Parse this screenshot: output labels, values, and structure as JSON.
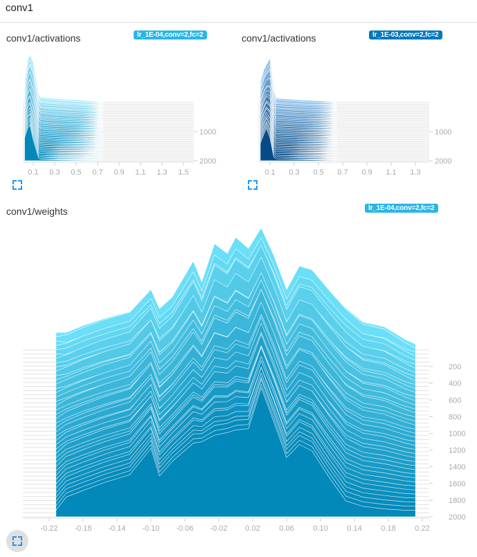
{
  "header": {
    "title": "conv1"
  },
  "charts": [
    {
      "title": "conv1/activations",
      "run_tag": "lr_1E-04,conv=2,fc=2",
      "tag_color": "#29b6e6",
      "color_back": "#b8f0ff",
      "color_front": "#0288b9",
      "chart_data": {
        "type": "area",
        "mode": "offset-histogram",
        "x_ticks": [
          "0.1",
          "0.3",
          "0.5",
          "0.7",
          "0.9",
          "1.1",
          "1.3",
          "1.5"
        ],
        "y_ticks": [
          "1000",
          "2000"
        ],
        "xlim": [
          0,
          1.6
        ],
        "ylim": [
          0,
          2000
        ],
        "density_x": [
          0.02,
          0.05,
          0.07,
          0.1,
          0.15,
          0.17,
          0.25,
          0.35,
          0.5,
          0.65,
          0.72,
          0.75
        ],
        "density_back": [
          0.55,
          0.9,
          1.0,
          0.85,
          0.2,
          0.12,
          0.1,
          0.08,
          0.06,
          0.03,
          0.01,
          0
        ],
        "density_front": [
          0.55,
          0.8,
          0.85,
          0.5,
          0.06,
          0.04,
          0.03,
          0.02,
          0.015,
          0.01,
          0.005,
          0
        ]
      }
    },
    {
      "title": "conv1/activations",
      "run_tag": "lr_1E-03,conv=2,fc=2",
      "tag_color": "#0277bd",
      "color_back": "#9fcdf2",
      "color_front": "#064b86",
      "chart_data": {
        "type": "area",
        "mode": "offset-histogram",
        "x_ticks": [
          "0.1",
          "0.3",
          "0.5",
          "0.7",
          "0.9",
          "1.1",
          "1.3"
        ],
        "y_ticks": [
          "1000",
          "2000"
        ],
        "xlim": [
          0,
          1.4
        ],
        "ylim": [
          0,
          2000
        ],
        "density_x": [
          0.02,
          0.05,
          0.07,
          0.1,
          0.13,
          0.15,
          0.25,
          0.35,
          0.5,
          0.6,
          0.65
        ],
        "density_back": [
          0.5,
          0.75,
          0.85,
          1.0,
          0.3,
          0.1,
          0.08,
          0.06,
          0.04,
          0.02,
          0
        ],
        "density_front": [
          0.45,
          0.7,
          0.85,
          0.6,
          0.1,
          0.05,
          0.04,
          0.03,
          0.02,
          0.01,
          0
        ]
      }
    },
    {
      "title": "conv1/weights",
      "run_tag": "lr_1E-04,conv=2,fc=2",
      "tag_color": "#29b6e6",
      "color_back": "#72e4fb",
      "color_front": "#0288b9",
      "chart_data": {
        "type": "area",
        "mode": "offset-histogram",
        "x_ticks": [
          "-0.22",
          "-0.18",
          "-0.14",
          "-0.10",
          "-0.06",
          "-0.02",
          "0.02",
          "0.06",
          "0.10",
          "0.14",
          "0.18",
          "0.22"
        ],
        "y_ticks": [
          "200",
          "400",
          "600",
          "800",
          "1000",
          "1200",
          "1400",
          "1600",
          "1800",
          "2000"
        ],
        "xlim": [
          -0.245,
          0.245
        ],
        "ylim": [
          0,
          2000
        ],
        "density_x": [
          -0.212,
          -0.2,
          -0.18,
          -0.155,
          -0.125,
          -0.1,
          -0.09,
          -0.075,
          -0.05,
          -0.04,
          -0.025,
          -0.01,
          0.0,
          0.015,
          0.03,
          0.045,
          0.06,
          0.075,
          0.09,
          0.11,
          0.13,
          0.15,
          0.175,
          0.2,
          0.212
        ],
        "density_back": [
          0.15,
          0.15,
          0.21,
          0.27,
          0.33,
          0.51,
          0.36,
          0.45,
          0.74,
          0.57,
          0.88,
          0.8,
          0.93,
          0.84,
          1.0,
          0.78,
          0.51,
          0.7,
          0.67,
          0.51,
          0.36,
          0.24,
          0.2,
          0.09,
          0.05
        ],
        "density_front": [
          0.05,
          0.15,
          0.2,
          0.26,
          0.32,
          0.52,
          0.31,
          0.42,
          0.56,
          0.57,
          0.62,
          0.64,
          0.66,
          0.67,
          0.98,
          0.72,
          0.45,
          0.55,
          0.5,
          0.3,
          0.12,
          0.08,
          0.06,
          0.05,
          0.05
        ]
      }
    }
  ]
}
